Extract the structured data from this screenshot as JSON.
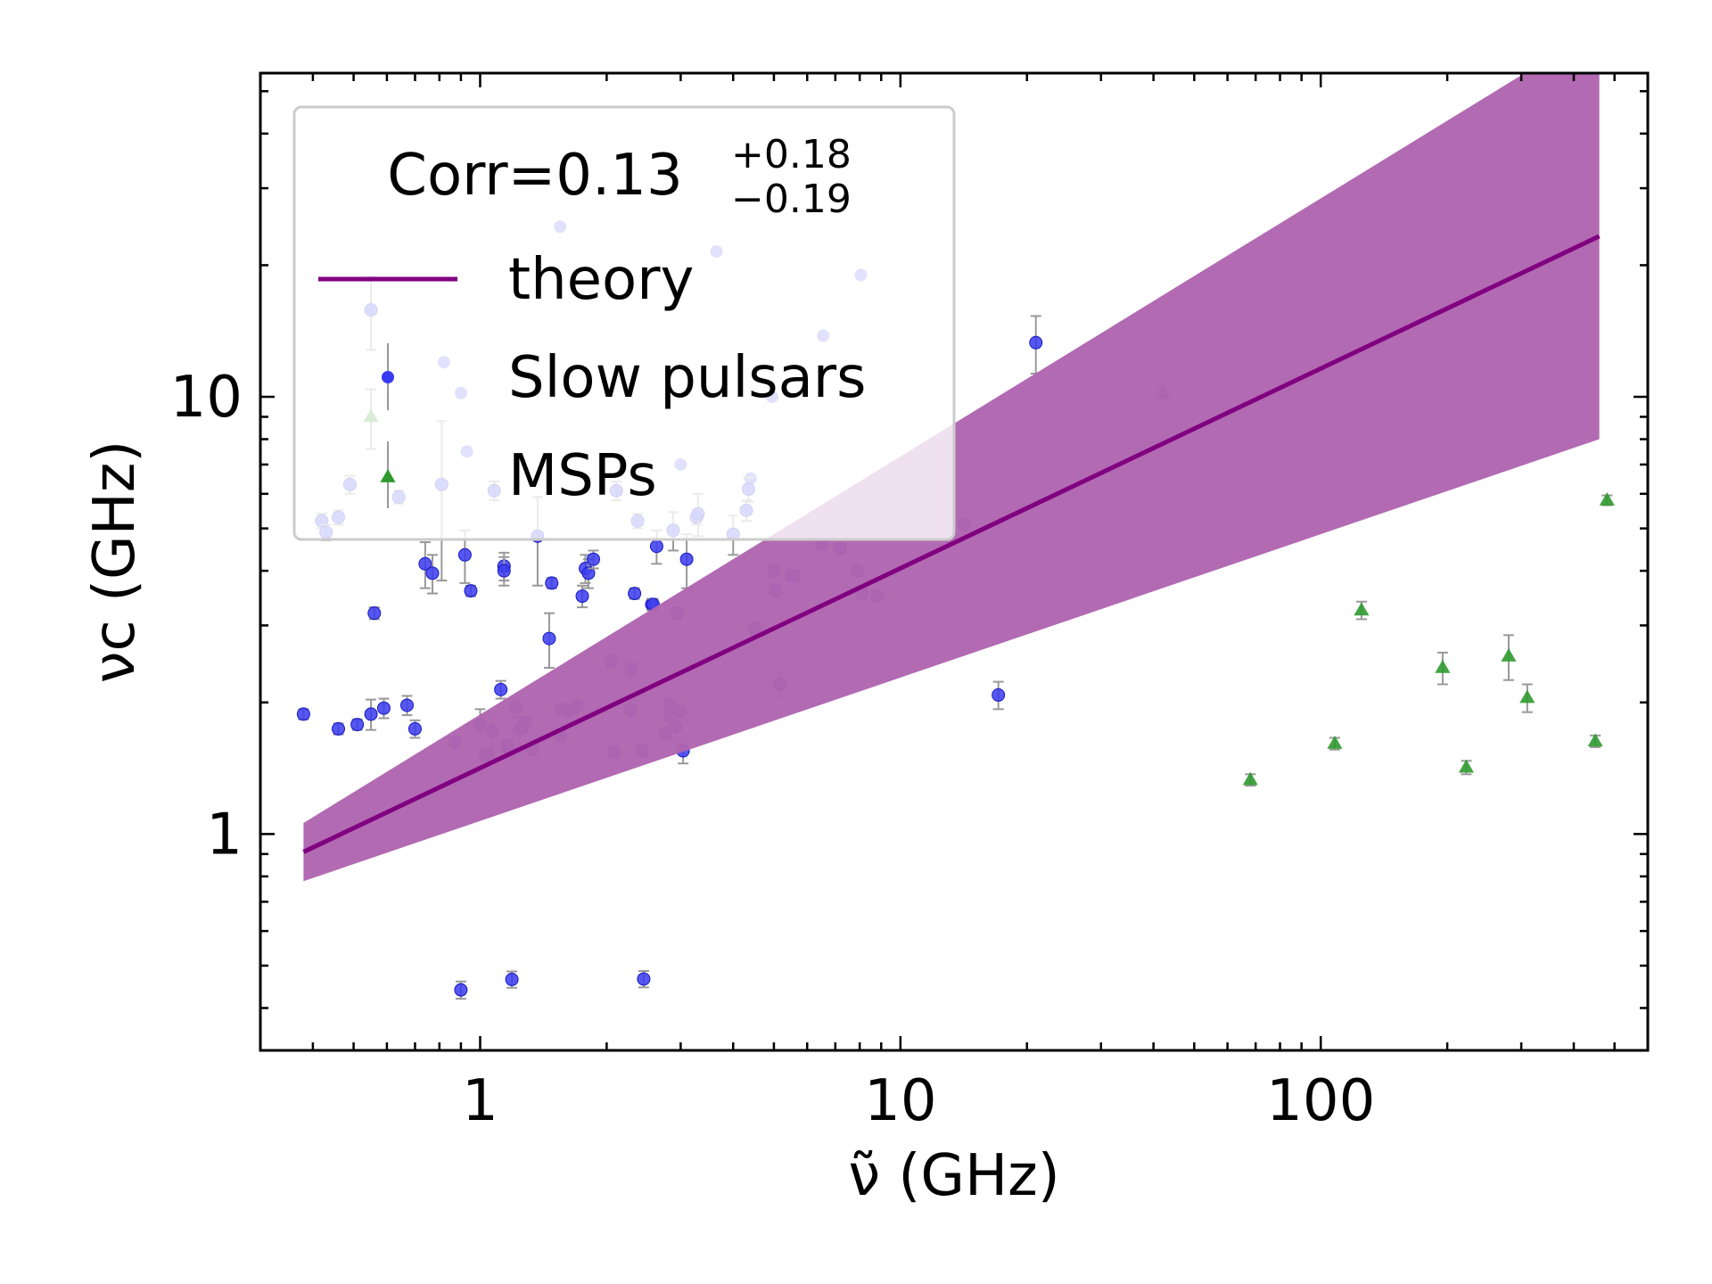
{
  "chart_data": {
    "type": "scatter",
    "title": "",
    "xlabel": "ν̃ (GHz)",
    "ylabel": "νc (GHz)",
    "x_scale": "log",
    "y_scale": "log",
    "xlim": [
      0.3,
      600
    ],
    "ylim": [
      0.32,
      55
    ],
    "x_ticks": [
      1,
      10,
      100
    ],
    "x_tick_labels": [
      "1",
      "10",
      "100"
    ],
    "y_ticks": [
      1,
      10
    ],
    "y_tick_labels": [
      "1",
      "10"
    ],
    "grid": false,
    "legend": {
      "placement": "top-left",
      "title": {
        "base": "Corr=0.13",
        "sup": "+0.18",
        "sub": "−0.19"
      },
      "entries": [
        "theory",
        "Slow pulsars",
        "MSPs"
      ]
    },
    "colors": {
      "theory": "#800080",
      "band": "#b065b0",
      "slow_pulsars": "#3a3af0",
      "msps": "#2e9a2e",
      "errorbar": "#999999"
    },
    "series": [
      {
        "name": "theory",
        "kind": "line",
        "x": [
          0.38,
          460
        ],
        "y": [
          0.91,
          23.3
        ]
      },
      {
        "name": "theory",
        "kind": "band",
        "x": [
          0.38,
          460
        ],
        "y_low": [
          0.78,
          8.0
        ],
        "y_high": [
          1.06,
          70.0
        ]
      },
      {
        "name": "Slow pulsars",
        "kind": "scatter",
        "points": [
          [
            0.38,
            1.88,
            0.05
          ],
          [
            0.42,
            5.2,
            0.2
          ],
          [
            0.43,
            4.9,
            0.2
          ],
          [
            0.46,
            1.74,
            0.05
          ],
          [
            0.46,
            5.3,
            0.2
          ],
          [
            0.49,
            6.3,
            0.3
          ],
          [
            0.51,
            1.78,
            0.05
          ],
          [
            0.55,
            1.88,
            0.15
          ],
          [
            0.56,
            3.2,
            0.1
          ],
          [
            0.59,
            1.94,
            0.1
          ],
          [
            0.64,
            5.9,
            0.2
          ],
          [
            0.67,
            1.97,
            0.1
          ],
          [
            0.7,
            1.74,
            0.08
          ],
          [
            0.74,
            4.15,
            0.5
          ],
          [
            0.77,
            3.95,
            0.4
          ],
          [
            0.81,
            6.3,
            2.5
          ],
          [
            0.87,
            1.62,
            0.05
          ],
          [
            0.9,
            0.44,
            0.02
          ],
          [
            0.92,
            4.35,
            0.6
          ],
          [
            0.95,
            3.6,
            0.1
          ],
          [
            1.0,
            1.78,
            0.15
          ],
          [
            1.03,
            1.52,
            0.05
          ],
          [
            1.04,
            1.52,
            0.05
          ],
          [
            1.07,
            1.72,
            0.15
          ],
          [
            1.08,
            6.1,
            0.3
          ],
          [
            1.12,
            2.14,
            0.1
          ],
          [
            1.14,
            4.1,
            0.3
          ],
          [
            1.14,
            4.0,
            0.3
          ],
          [
            1.16,
            1.59,
            0.05
          ],
          [
            1.18,
            1.56,
            0.05
          ],
          [
            1.19,
            0.465,
            0.02
          ],
          [
            1.22,
            1.95,
            0.1
          ],
          [
            1.24,
            1.74,
            0.15
          ],
          [
            1.26,
            1.75,
            0.05
          ],
          [
            1.28,
            1.8,
            0.05
          ],
          [
            1.33,
            1.56,
            0.05
          ],
          [
            1.37,
            4.8,
            1.1
          ],
          [
            1.46,
            2.8,
            0.4
          ],
          [
            1.48,
            3.75,
            0.1
          ],
          [
            1.55,
            1.68,
            0.05
          ],
          [
            1.56,
            1.93,
            0.05
          ],
          [
            1.62,
            1.91,
            0.05
          ],
          [
            1.7,
            1.96,
            0.15
          ],
          [
            1.75,
            3.5,
            0.2
          ],
          [
            1.78,
            4.05,
            0.3
          ],
          [
            1.81,
            3.95,
            0.3
          ],
          [
            1.86,
            4.25,
            0.2
          ],
          [
            2.05,
            2.48,
            0.1
          ],
          [
            2.08,
            1.54,
            0.05
          ],
          [
            2.11,
            6.1,
            0.3
          ],
          [
            2.28,
            1.92,
            0.1
          ],
          [
            2.29,
            2.38,
            0.1
          ],
          [
            2.33,
            3.55,
            0.1
          ],
          [
            2.37,
            5.2,
            0.2
          ],
          [
            2.43,
            1.55,
            0.05
          ],
          [
            2.45,
            0.466,
            0.02
          ],
          [
            2.56,
            3.35,
            0.1
          ],
          [
            2.58,
            3.35,
            0.1
          ],
          [
            2.63,
            4.55,
            0.4
          ],
          [
            2.76,
            1.7,
            0.05
          ],
          [
            2.82,
            1.98,
            0.05
          ],
          [
            2.84,
            1.86,
            0.05
          ],
          [
            2.88,
            4.95,
            0.5
          ],
          [
            2.92,
            1.76,
            0.15
          ],
          [
            2.94,
            3.2,
            0.1
          ],
          [
            2.99,
            1.91,
            0.05
          ],
          [
            3.04,
            1.55,
            0.1
          ],
          [
            3.1,
            4.25,
            0.6
          ],
          [
            3.27,
            5.3,
            0.2
          ],
          [
            3.3,
            5.4,
            0.6
          ],
          [
            4.0,
            4.85,
            0.5
          ],
          [
            4.3,
            5.5,
            0.3
          ],
          [
            4.35,
            6.15,
            0.4
          ],
          [
            4.5,
            2.95,
            0.1
          ],
          [
            5.0,
            4.0,
            0.1
          ],
          [
            5.05,
            3.6,
            0.1
          ],
          [
            5.15,
            2.2,
            0.15
          ],
          [
            5.5,
            3.9,
            0.1
          ],
          [
            5.6,
            3.9,
            0.1
          ],
          [
            6.5,
            4.6,
            0.1
          ],
          [
            7.2,
            4.5,
            0.1
          ],
          [
            7.9,
            4.0,
            0.1
          ],
          [
            8.1,
            3.55,
            0.1
          ],
          [
            8.8,
            3.5,
            0.1
          ],
          [
            14.2,
            5.1,
            0.1
          ],
          [
            17.1,
            2.08,
            0.15
          ],
          [
            21.0,
            13.3,
            2.0
          ],
          [
            0.55,
            15.8,
            3.0
          ]
        ]
      },
      {
        "name": "MSPs",
        "kind": "scatter",
        "points": [
          [
            42,
            10.2,
            0.3
          ],
          [
            68,
            1.33,
            0.04
          ],
          [
            108,
            1.61,
            0.05
          ],
          [
            125,
            3.25,
            0.15
          ],
          [
            195,
            2.4,
            0.2
          ],
          [
            222,
            1.42,
            0.05
          ],
          [
            280,
            2.55,
            0.3
          ],
          [
            310,
            2.05,
            0.15
          ],
          [
            450,
            1.63,
            0.05
          ],
          [
            480,
            5.8,
            0.15
          ],
          [
            0.55,
            9.0,
            1.4
          ]
        ]
      }
    ],
    "hidden_points": [
      [
        0.82,
        12.0
      ],
      [
        0.9,
        10.2
      ],
      [
        0.93,
        7.5
      ],
      [
        1.55,
        24.5
      ],
      [
        3.65,
        21.5
      ],
      [
        4.95,
        10.0
      ],
      [
        6.55,
        13.8
      ],
      [
        8.05,
        19.0
      ],
      [
        3.0,
        7.0
      ],
      [
        4.4,
        6.5
      ]
    ]
  }
}
